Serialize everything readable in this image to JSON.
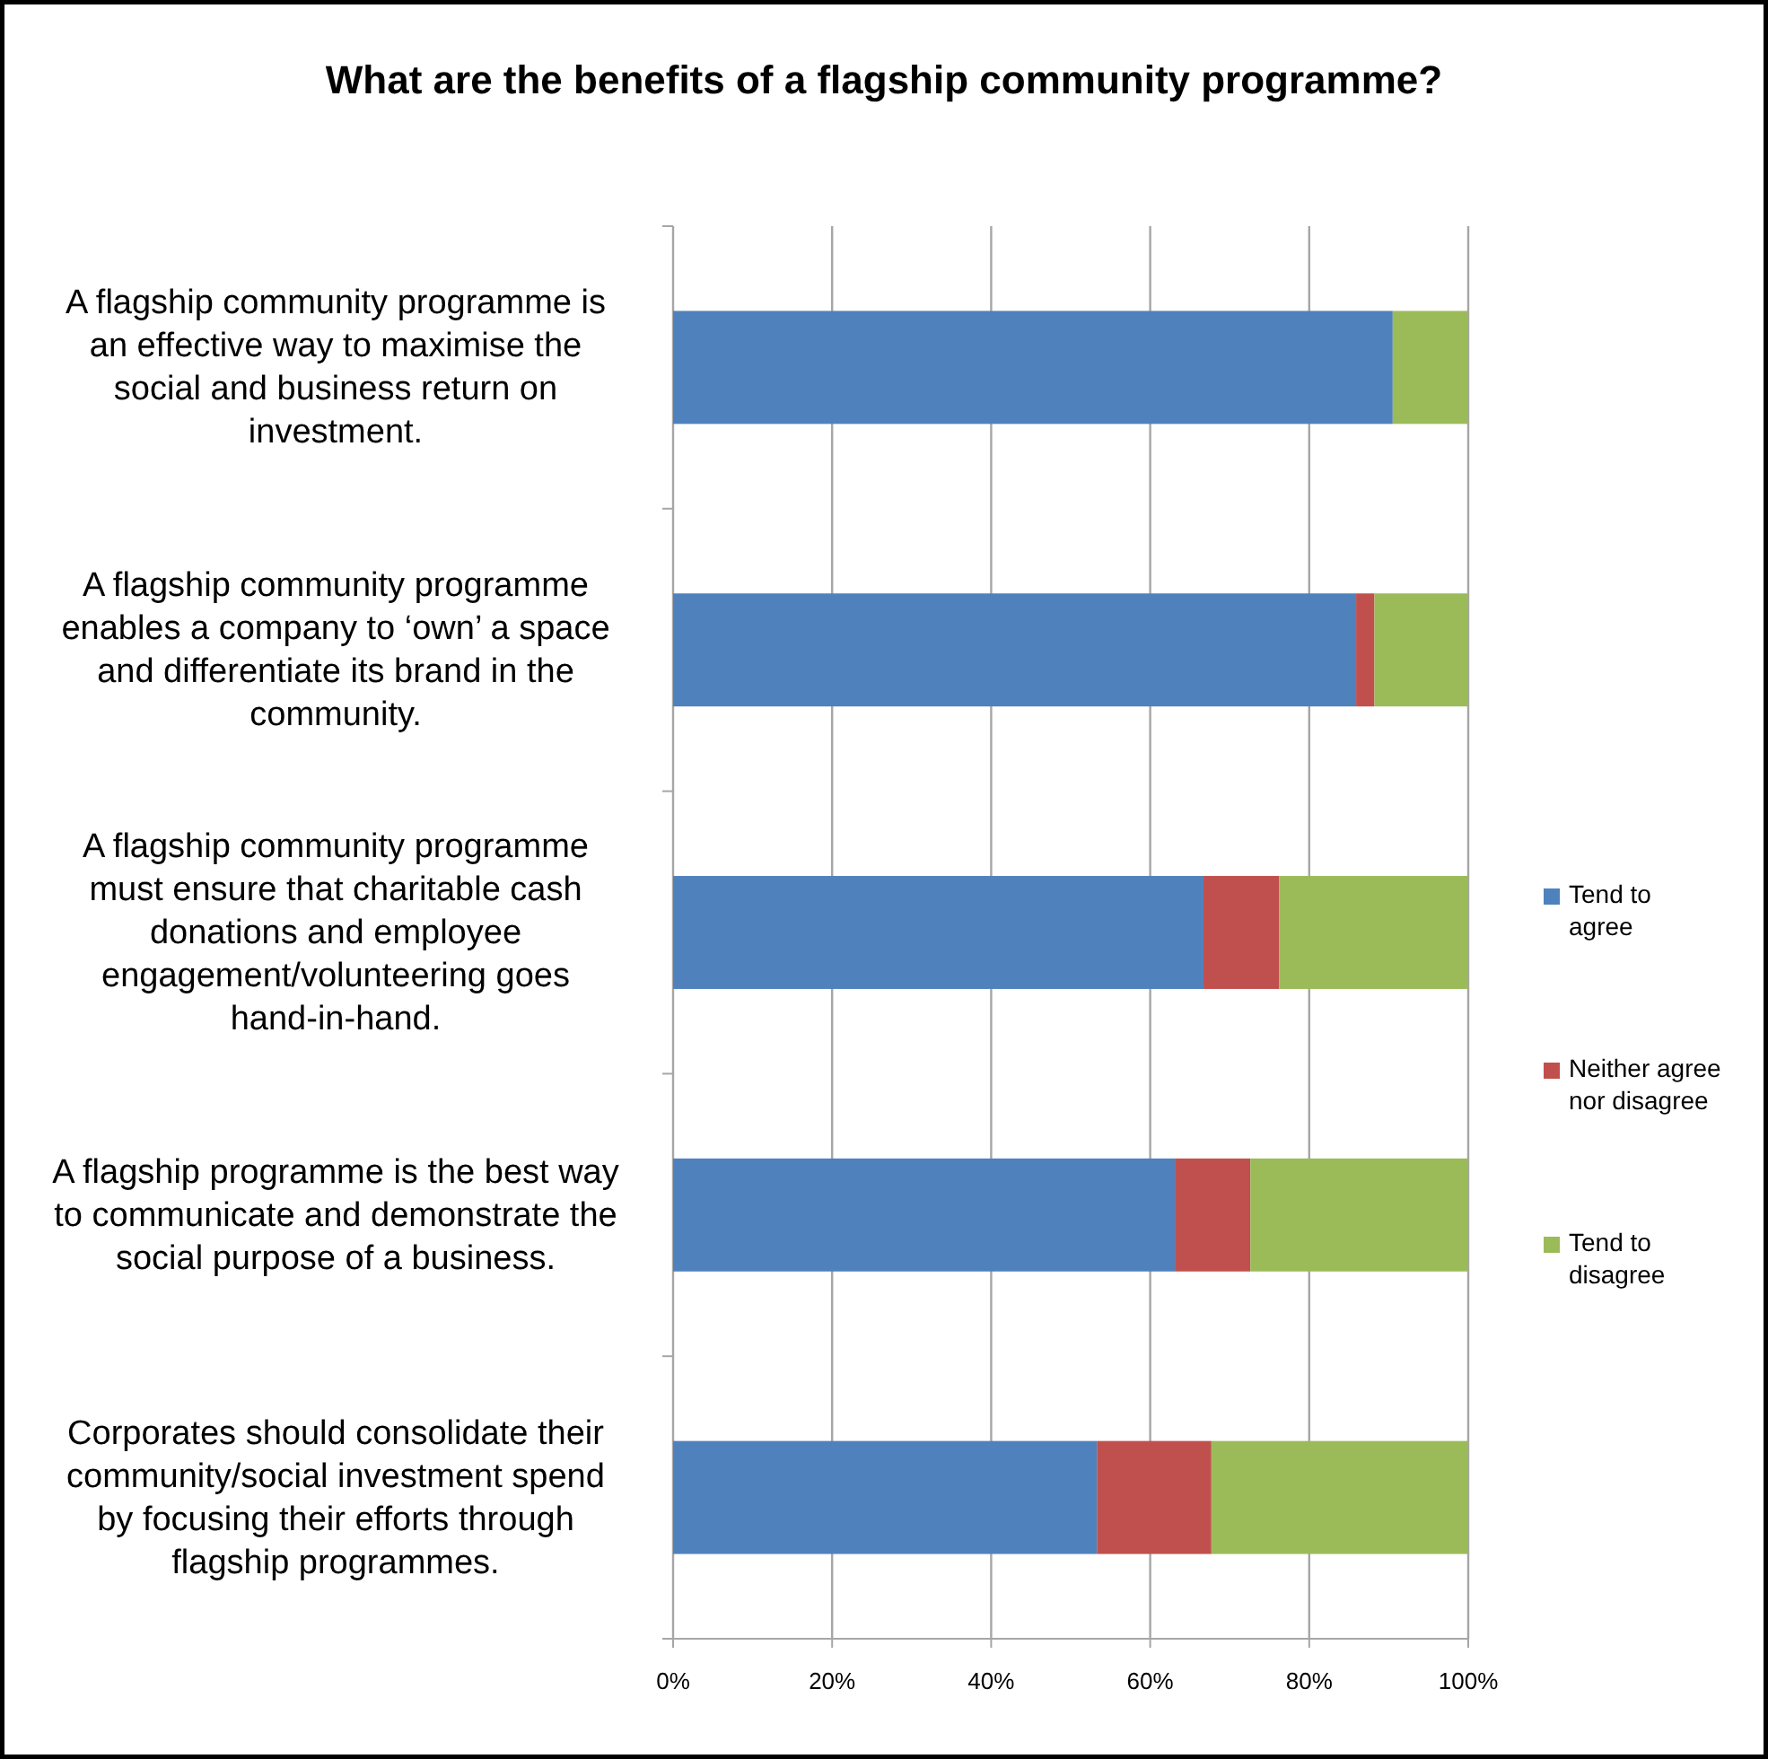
{
  "chart_data": {
    "type": "bar",
    "orientation": "horizontal",
    "stacked": true,
    "title": "What are the benefits of a flagship community programme?",
    "categories": [
      "A flagship community programme is an effective way to maximise the social and business return on investment.",
      "A flagship community programme enables a company to ‘own’ a space and differentiate its brand in the community.",
      "A flagship community programme must ensure that charitable cash donations and employee engagement/volunteering goes hand-in-hand.",
      "A flagship programme is the best way to communicate and demonstrate the social purpose of a business.",
      "Corporates should consolidate their community/social investment spend by focusing their efforts through flagship programmes."
    ],
    "series": [
      {
        "name": "Tend to agree",
        "color": "#4f81bd",
        "values": [
          90.5,
          85.9,
          66.7,
          63.1,
          53.3
        ]
      },
      {
        "name": "Neither agree nor disagree",
        "color": "#c0504d",
        "values": [
          0,
          2.3,
          9.5,
          9.5,
          14.4
        ]
      },
      {
        "name": "Tend to disagree",
        "color": "#9bbb59",
        "values": [
          9.5,
          11.8,
          23.8,
          27.4,
          32.3
        ]
      }
    ],
    "xlim": [
      0,
      100
    ],
    "xticks": [
      {
        "value": 0,
        "label": "0%"
      },
      {
        "value": 20,
        "label": "20%"
      },
      {
        "value": 40,
        "label": "40%"
      },
      {
        "value": 60,
        "label": "60%"
      },
      {
        "value": 80,
        "label": "80%"
      },
      {
        "value": 100,
        "label": "100%"
      }
    ],
    "grid": "x",
    "legend": "right"
  }
}
